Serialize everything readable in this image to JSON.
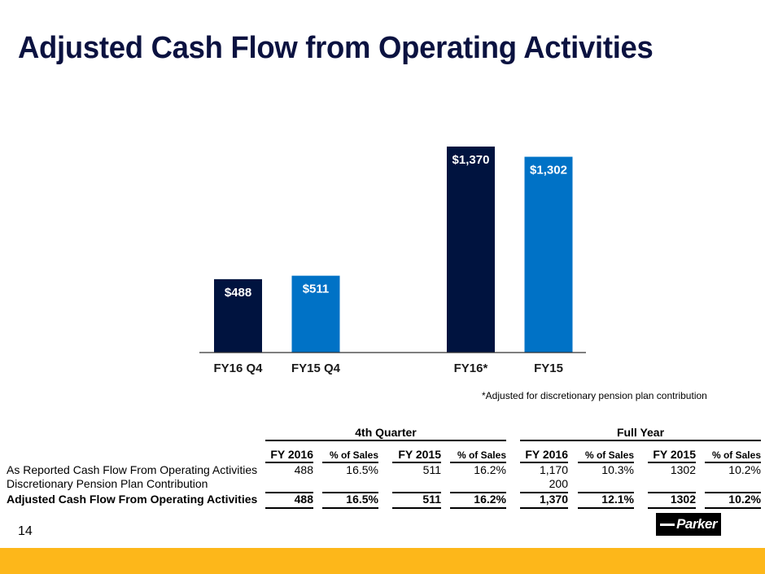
{
  "slide": {
    "title": "Adjusted Cash Flow from Operating Activities",
    "footnote": "*Adjusted for discretionary pension plan contribution",
    "page_number": "14",
    "logo_text": "Parker"
  },
  "colors": {
    "title": "#0b1240",
    "fy16": "#00133f",
    "fy15": "#0072c6",
    "footer_band": "#fdb71a"
  },
  "chart_data": {
    "type": "bar",
    "title": "",
    "xlabel": "",
    "ylabel": "",
    "categories": [
      "FY16 Q4",
      "FY15 Q4",
      "FY16*",
      "FY15"
    ],
    "values": [
      488,
      511,
      1370,
      1302
    ],
    "data_labels": [
      "$488",
      "$511",
      "$1,370",
      "$1,302"
    ],
    "series_colors": [
      "#00133f",
      "#0072c6",
      "#00133f",
      "#0072c6"
    ],
    "ylim": [
      0,
      1370
    ],
    "grid": false,
    "legend": "none",
    "y_axis_visible": false
  },
  "table": {
    "groups": [
      {
        "label": "4th Quarter"
      },
      {
        "label": "Full Year"
      }
    ],
    "columns": [
      "FY 2016",
      "% of Sales",
      "FY 2015",
      "% of Sales",
      "FY 2016",
      "% of Sales",
      "FY 2015",
      "% of Sales"
    ],
    "rows": [
      {
        "label": "As Reported Cash Flow From Operating Activities",
        "bold": false,
        "values": [
          "488",
          "16.5%",
          "511",
          "16.2%",
          "1,170",
          "10.3%",
          "1302",
          "10.2%"
        ]
      },
      {
        "label": "Discretionary Pension Plan Contribution",
        "bold": false,
        "values": [
          "",
          "",
          "",
          "",
          "200",
          "",
          "",
          ""
        ]
      },
      {
        "label": "Adjusted Cash Flow From Operating Activities",
        "bold": true,
        "values": [
          "488",
          "16.5%",
          "511",
          "16.2%",
          "1,370",
          "12.1%",
          "1302",
          "10.2%"
        ]
      }
    ]
  }
}
